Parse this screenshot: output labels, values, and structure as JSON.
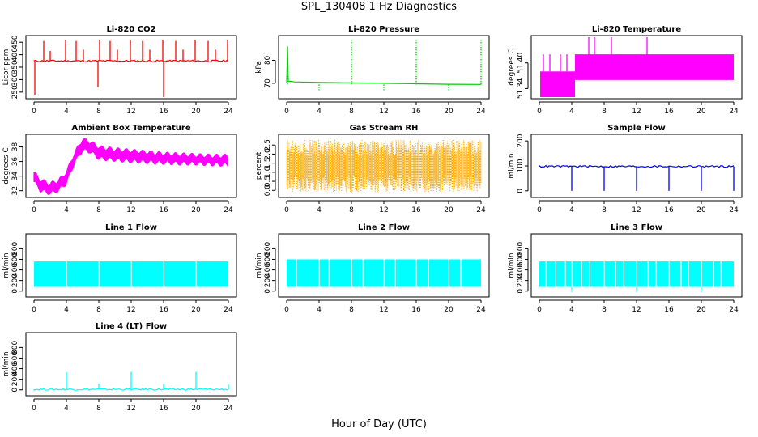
{
  "figure": {
    "title": "SPL_130408  1 Hz Diagnostics",
    "xlabel": "Hour of Day (UTC)"
  },
  "chart_data": [
    {
      "type": "line",
      "title": "Li-820 CO2",
      "ylabel": "Licor ppm",
      "color": "#ff0000",
      "xlim": [
        0,
        24
      ],
      "ylim": [
        230,
        470
      ],
      "xticks": [
        "0",
        "4",
        "8",
        "12",
        "16",
        "20",
        "24"
      ],
      "yticks": [
        250,
        300,
        350,
        400,
        450
      ],
      "baseline": 375,
      "spikes": [
        {
          "x": 0.1,
          "y": 240
        },
        {
          "x": 1.2,
          "y": 455
        },
        {
          "x": 2.0,
          "y": 415
        },
        {
          "x": 3.9,
          "y": 460
        },
        {
          "x": 5.2,
          "y": 455
        },
        {
          "x": 6.1,
          "y": 420
        },
        {
          "x": 7.9,
          "y": 270
        },
        {
          "x": 8.1,
          "y": 460
        },
        {
          "x": 9.4,
          "y": 455
        },
        {
          "x": 10.3,
          "y": 420
        },
        {
          "x": 11.9,
          "y": 460
        },
        {
          "x": 13.4,
          "y": 455
        },
        {
          "x": 14.3,
          "y": 420
        },
        {
          "x": 15.9,
          "y": 460
        },
        {
          "x": 16.0,
          "y": 230
        },
        {
          "x": 17.5,
          "y": 455
        },
        {
          "x": 18.4,
          "y": 420
        },
        {
          "x": 19.9,
          "y": 460
        },
        {
          "x": 21.5,
          "y": 455
        },
        {
          "x": 22.4,
          "y": 420
        },
        {
          "x": 23.9,
          "y": 460
        }
      ]
    },
    {
      "type": "line",
      "title": "Li-820 Pressure",
      "ylabel": "kPa",
      "color": "#00cc00",
      "xlim": [
        0,
        24
      ],
      "ylim": [
        64,
        90
      ],
      "xticks": [
        "0",
        "4",
        "8",
        "12",
        "16",
        "20",
        "24"
      ],
      "yticks": [
        70,
        80
      ],
      "series": [
        {
          "x": [
            0,
            0.1,
            0.2,
            1,
            4,
            8,
            12,
            16,
            20,
            24
          ],
          "y": [
            70,
            86,
            71,
            70.6,
            70.4,
            70.2,
            70.0,
            69.8,
            69.6,
            69.5
          ]
        }
      ],
      "spikes": [
        {
          "x": 0.1,
          "y": 86
        },
        {
          "x": 4.0,
          "y": 67
        },
        {
          "x": 8.0,
          "y": 89
        },
        {
          "x": 12.0,
          "y": 67
        },
        {
          "x": 16.0,
          "y": 89
        },
        {
          "x": 20.0,
          "y": 67
        },
        {
          "x": 24.0,
          "y": 89
        }
      ]
    },
    {
      "type": "area",
      "title": "Li-820 Temperature",
      "ylabel": "degrees C",
      "color": "#ff00ff",
      "xlim": [
        0,
        24
      ],
      "ylim": [
        51.32,
        51.46
      ],
      "xticks": [
        "0",
        "4",
        "8",
        "12",
        "16",
        "20",
        "24"
      ],
      "yticks": [
        51.34,
        51.4
      ],
      "ytick_labels": [
        "51.34",
        "51.40"
      ],
      "bands": [
        {
          "x0": 0.1,
          "x1": 4.4,
          "low": 51.32,
          "high": 51.38
        },
        {
          "x0": 4.4,
          "x1": 24.0,
          "low": 51.36,
          "high": 51.42
        }
      ],
      "spikes": [
        {
          "x": 0.5,
          "y": 51.42
        },
        {
          "x": 1.3,
          "y": 51.42
        },
        {
          "x": 2.6,
          "y": 51.42
        },
        {
          "x": 3.4,
          "y": 51.42
        },
        {
          "x": 6.1,
          "y": 51.46
        },
        {
          "x": 6.8,
          "y": 51.46
        },
        {
          "x": 8.9,
          "y": 51.46
        },
        {
          "x": 13.3,
          "y": 51.46
        }
      ]
    },
    {
      "type": "area",
      "title": "Ambient Box Temperature",
      "ylabel": "degrees C",
      "color": "#ff00ff",
      "xlim": [
        0,
        24
      ],
      "ylim": [
        31.3,
        39.5
      ],
      "xticks": [
        "0",
        "4",
        "8",
        "12",
        "16",
        "20",
        "24"
      ],
      "yticks": [
        32,
        34,
        36,
        38
      ],
      "envelope": {
        "x": [
          0,
          0.8,
          2.0,
          3.0,
          4.0,
          5.0,
          6.0,
          7.0,
          8.0,
          10.0,
          12.0,
          14.0,
          16.0,
          18.0,
          20.0,
          22.0,
          24.0
        ],
        "low": [
          33.2,
          32.0,
          31.6,
          32.0,
          33.0,
          35.8,
          37.5,
          37.3,
          36.4,
          36.2,
          36.0,
          35.9,
          35.8,
          35.7,
          35.7,
          35.6,
          35.5
        ],
        "high": [
          34.5,
          33.5,
          33.0,
          33.4,
          34.6,
          37.2,
          39.1,
          38.7,
          38.0,
          37.7,
          37.5,
          37.3,
          37.1,
          37.0,
          36.9,
          36.8,
          36.8
        ]
      }
    },
    {
      "type": "scatter",
      "title": "Gas Stream RH",
      "ylabel": "percent",
      "color": "#ffaa00",
      "xlim": [
        0,
        24
      ],
      "ylim": [
        -0.3,
        3.0
      ],
      "xticks": [
        "0",
        "4",
        "8",
        "12",
        "16",
        "20",
        "24"
      ],
      "yticks": [
        0.0,
        0.5,
        1.0,
        1.5,
        2.0,
        2.5
      ],
      "ytick_labels": [
        "0.0",
        "0.5",
        "1.0",
        "1.5",
        "2.0",
        "2.5"
      ],
      "band": {
        "x0": 0,
        "x1": 24,
        "low": -0.1,
        "high": 2.8
      }
    },
    {
      "type": "line",
      "title": "Sample Flow",
      "ylabel": "ml/min",
      "color": "#0000ff",
      "xlim": [
        0,
        24
      ],
      "ylim": [
        -20,
        220
      ],
      "xticks": [
        "0",
        "4",
        "8",
        "12",
        "16",
        "20",
        "24"
      ],
      "yticks": [
        0,
        100,
        200
      ],
      "baseline": 98,
      "spikes": [
        {
          "x": 4.0,
          "y": 0
        },
        {
          "x": 8.0,
          "y": 0
        },
        {
          "x": 12.0,
          "y": 0
        },
        {
          "x": 16.0,
          "y": 0
        },
        {
          "x": 20.0,
          "y": 0
        },
        {
          "x": 24.0,
          "y": 0
        }
      ]
    },
    {
      "type": "area",
      "title": "Line 1 Flow",
      "ylabel": "ml/min",
      "color": "#00ffff",
      "xlim": [
        0,
        24
      ],
      "ylim": [
        -80,
        1050
      ],
      "xticks": [
        "0",
        "4",
        "8",
        "12",
        "16",
        "20",
        "24"
      ],
      "yticks": [
        0,
        200,
        400,
        600,
        800
      ],
      "band": {
        "x0": 0,
        "x1": 24,
        "low": 80,
        "high": 560
      },
      "gaps": [
        4,
        8,
        12,
        16,
        20
      ]
    },
    {
      "type": "area",
      "title": "Line 2 Flow",
      "ylabel": "ml/min",
      "color": "#00ffff",
      "xlim": [
        0,
        24
      ],
      "ylim": [
        -80,
        1050
      ],
      "xticks": [
        "0",
        "4",
        "8",
        "12",
        "16",
        "20",
        "24"
      ],
      "yticks": [
        0,
        200,
        400,
        600,
        800
      ],
      "band": {
        "x0": 0,
        "x1": 24,
        "low": 80,
        "high": 600
      },
      "gaps": [
        1.2,
        4,
        5.2,
        8,
        9.4,
        12,
        13.4,
        16,
        17.5,
        20,
        21.5
      ]
    },
    {
      "type": "area",
      "title": "Line 3 Flow",
      "ylabel": "ml/min",
      "color": "#00ffff",
      "xlim": [
        0,
        24
      ],
      "ylim": [
        -80,
        1050
      ],
      "xticks": [
        "0",
        "4",
        "8",
        "12",
        "16",
        "20",
        "24"
      ],
      "yticks": [
        0,
        200,
        400,
        600,
        800
      ],
      "band": {
        "x0": 0,
        "x1": 24,
        "low": 80,
        "high": 560
      },
      "gaps": [
        0.8,
        2.0,
        3.2,
        4,
        5.2,
        6.2,
        8,
        9.4,
        10.4,
        12,
        13.4,
        14.4,
        16,
        17.5,
        18.4,
        20,
        21.5,
        22.4
      ],
      "dips": [
        {
          "x": 4.0,
          "y": -20
        },
        {
          "x": 12.0,
          "y": -20
        },
        {
          "x": 20.0,
          "y": -20
        }
      ]
    },
    {
      "type": "line",
      "title": "Line 4 (LT) Flow",
      "ylabel": "ml/min",
      "color": "#00ffff",
      "xlim": [
        0,
        24
      ],
      "ylim": [
        -80,
        1050
      ],
      "xticks": [
        "0",
        "4",
        "8",
        "12",
        "16",
        "20",
        "24"
      ],
      "yticks": [
        0,
        200,
        400,
        600,
        800
      ],
      "baseline": 10,
      "spikes": [
        {
          "x": 4.0,
          "y": 330
        },
        {
          "x": 8.0,
          "y": 120
        },
        {
          "x": 12.0,
          "y": 340
        },
        {
          "x": 16.0,
          "y": 110
        },
        {
          "x": 20.0,
          "y": 340
        },
        {
          "x": 24.0,
          "y": 100
        }
      ]
    }
  ]
}
